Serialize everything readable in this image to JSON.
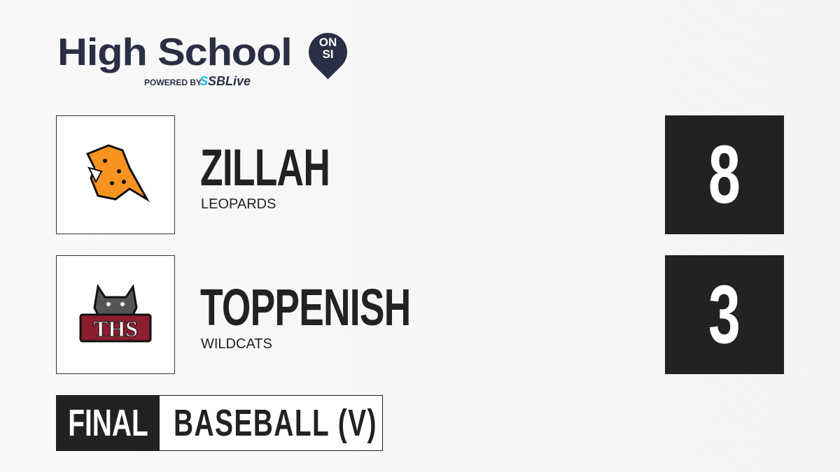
{
  "brand": {
    "title": "High School",
    "badge_line1": "ON",
    "badge_line2": "SI",
    "powered_by": "POWERED BY",
    "partner_prefix": "S",
    "partner": "SBLive",
    "accent": "#1fb5e8",
    "text_color": "#2a2f45"
  },
  "teams": [
    {
      "name": "ZILLAH",
      "mascot": "LEOPARDS",
      "score": "8",
      "logo": "leopard-logo"
    },
    {
      "name": "TOPPENISH",
      "mascot": "WILDCATS",
      "score": "3",
      "logo": "wildcat-ths-logo",
      "logo_text": "THS"
    }
  ],
  "status": {
    "label": "FINAL",
    "sport": "BASEBALL (V)"
  }
}
